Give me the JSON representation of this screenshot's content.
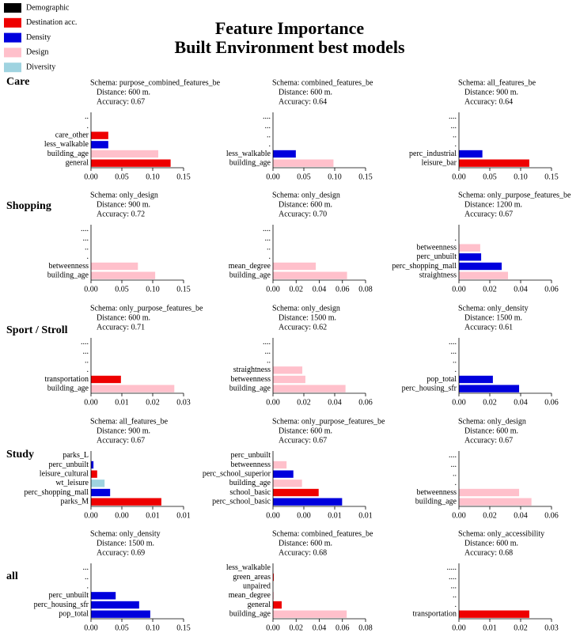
{
  "title": "Feature Importance",
  "subtitle": "Built Environment best models",
  "legend": [
    {
      "name": "Demographic",
      "color": "#000000"
    },
    {
      "name": "Destination acc.",
      "color": "#ee0000"
    },
    {
      "name": "Density",
      "color": "#0000dd"
    },
    {
      "name": "Design",
      "color": "#ffc0cb"
    },
    {
      "name": "Diversity",
      "color": "#9fd3e0"
    }
  ],
  "row_labels": [
    "Care",
    "Shopping",
    "Sport / Stroll",
    "Study",
    "all"
  ],
  "chart_data": [
    {
      "type": "bar",
      "schema": "Schema: purpose_combined_features_be",
      "distance": "Distance: 600 m.",
      "accuracy": "Accuracy: 0.67",
      "categories": [
        "..",
        ".",
        "care_other",
        "less_walkable",
        "building_age",
        "general"
      ],
      "values": [
        null,
        null,
        0.028,
        0.028,
        0.109,
        0.129
      ],
      "colors": [
        null,
        null,
        "#ee0000",
        "#0000dd",
        "#ffc0cb",
        "#ee0000"
      ],
      "xlim": [
        0,
        0.15
      ],
      "xticks": [
        {
          "value": 0,
          "label": "0.00"
        },
        {
          "value": 0.05,
          "label": "0.05"
        },
        {
          "value": 0.1,
          "label": "0.10"
        },
        {
          "value": 0.15,
          "label": "0.15"
        }
      ]
    },
    {
      "type": "bar",
      "schema": "Schema: combined_features_be",
      "distance": "Distance: 600 m.",
      "accuracy": "Accuracy: 0.64",
      "categories": [
        "....",
        "...",
        "..",
        ".",
        "less_walkable",
        "building_age"
      ],
      "values": [
        null,
        null,
        null,
        null,
        0.037,
        0.098
      ],
      "colors": [
        null,
        null,
        null,
        null,
        "#0000dd",
        "#ffc0cb"
      ],
      "xlim": [
        0,
        0.15
      ],
      "xticks": [
        {
          "value": 0,
          "label": "0.00"
        },
        {
          "value": 0.05,
          "label": "0.05"
        },
        {
          "value": 0.1,
          "label": "0.10"
        },
        {
          "value": 0.15,
          "label": "0.15"
        }
      ]
    },
    {
      "type": "bar",
      "schema": "Schema: all_features_be",
      "distance": "Distance: 900 m.",
      "accuracy": "Accuracy: 0.64",
      "categories": [
        "....",
        "...",
        "..",
        ".",
        "perc_industrial",
        "leisure_bar"
      ],
      "values": [
        null,
        null,
        null,
        null,
        0.038,
        0.114
      ],
      "colors": [
        null,
        null,
        null,
        null,
        "#0000dd",
        "#ee0000"
      ],
      "xlim": [
        0,
        0.15
      ],
      "xticks": [
        {
          "value": 0,
          "label": "0.00"
        },
        {
          "value": 0.05,
          "label": "0.05"
        },
        {
          "value": 0.1,
          "label": "0.10"
        },
        {
          "value": 0.15,
          "label": "0.15"
        }
      ]
    },
    {
      "type": "bar",
      "schema": "Schema: only_design",
      "distance": "Distance: 900 m.",
      "accuracy": "Accuracy: 0.72",
      "categories": [
        "....",
        "...",
        "..",
        ".",
        "betweenness",
        "building_age"
      ],
      "values": [
        null,
        null,
        null,
        null,
        0.076,
        0.104
      ],
      "colors": [
        null,
        null,
        null,
        null,
        "#ffc0cb",
        "#ffc0cb"
      ],
      "xlim": [
        0,
        0.15
      ],
      "xticks": [
        {
          "value": 0,
          "label": "0.00"
        },
        {
          "value": 0.05,
          "label": "0.05"
        },
        {
          "value": 0.1,
          "label": "0.10"
        },
        {
          "value": 0.15,
          "label": "0.15"
        }
      ]
    },
    {
      "type": "bar",
      "schema": "Schema: only_design",
      "distance": "Distance: 600 m.",
      "accuracy": "Accuracy: 0.70",
      "categories": [
        "....",
        "...",
        "..",
        ".",
        "mean_degree",
        "building_age"
      ],
      "values": [
        null,
        null,
        null,
        null,
        0.037,
        0.064
      ],
      "colors": [
        null,
        null,
        null,
        null,
        "#ffc0cb",
        "#ffc0cb"
      ],
      "xlim": [
        0,
        0.08
      ],
      "xticks": [
        {
          "value": 0,
          "label": "0.00"
        },
        {
          "value": 0.02,
          "label": "0.02"
        },
        {
          "value": 0.04,
          "label": "0.04"
        },
        {
          "value": 0.06,
          "label": "0.06"
        },
        {
          "value": 0.08,
          "label": "0.08"
        }
      ]
    },
    {
      "type": "bar",
      "schema": "Schema: only_purpose_features_be",
      "distance": "Distance: 1200 m.",
      "accuracy": "Accuracy: 0.67",
      "categories": [
        ".",
        "betweenness",
        "perc_unbuilt",
        "perc_shopping_mall",
        "straightness"
      ],
      "values": [
        null,
        0.0138,
        0.0144,
        0.0277,
        0.0318
      ],
      "colors": [
        null,
        "#ffc0cb",
        "#0000dd",
        "#0000dd",
        "#ffc0cb"
      ],
      "xlim": [
        0,
        0.06
      ],
      "xticks": [
        {
          "value": 0,
          "label": "0.00"
        },
        {
          "value": 0.02,
          "label": "0.02"
        },
        {
          "value": 0.04,
          "label": "0.04"
        },
        {
          "value": 0.06,
          "label": "0.06"
        }
      ]
    },
    {
      "type": "bar",
      "schema": "Schema: only_purpose_features_be",
      "distance": "Distance: 600 m.",
      "accuracy": "Accuracy: 0.71",
      "categories": [
        "....",
        "...",
        "..",
        ".",
        "transportation",
        "building_age"
      ],
      "values": [
        null,
        null,
        null,
        null,
        0.0097,
        0.027
      ],
      "colors": [
        null,
        null,
        null,
        null,
        "#ee0000",
        "#ffc0cb"
      ],
      "xlim": [
        0,
        0.03
      ],
      "xticks": [
        {
          "value": 0,
          "label": "0.00"
        },
        {
          "value": 0.01,
          "label": "0.01"
        },
        {
          "value": 0.02,
          "label": "0.02"
        },
        {
          "value": 0.03,
          "label": "0.03"
        }
      ]
    },
    {
      "type": "bar",
      "schema": "Schema: only_design",
      "distance": "Distance: 1500 m.",
      "accuracy": "Accuracy: 0.62",
      "categories": [
        "....",
        "...",
        "..",
        "straightness",
        "betweenness",
        "building_age"
      ],
      "values": [
        null,
        null,
        null,
        0.019,
        0.021,
        0.047
      ],
      "colors": [
        null,
        null,
        null,
        "#ffc0cb",
        "#ffc0cb",
        "#ffc0cb"
      ],
      "xlim": [
        0,
        0.06
      ],
      "xticks": [
        {
          "value": 0,
          "label": "0.00"
        },
        {
          "value": 0.02,
          "label": "0.02"
        },
        {
          "value": 0.04,
          "label": "0.04"
        },
        {
          "value": 0.06,
          "label": "0.06"
        }
      ]
    },
    {
      "type": "bar",
      "schema": "Schema: only_density",
      "distance": "Distance: 1500 m.",
      "accuracy": "Accuracy: 0.61",
      "categories": [
        "....",
        "...",
        "..",
        ".",
        "pop_total",
        "perc_housing_sfr"
      ],
      "values": [
        null,
        null,
        null,
        null,
        0.022,
        0.039
      ],
      "colors": [
        null,
        null,
        null,
        null,
        "#0000dd",
        "#0000dd"
      ],
      "xlim": [
        0,
        0.06
      ],
      "xticks": [
        {
          "value": 0,
          "label": "0.00"
        },
        {
          "value": 0.02,
          "label": "0.02"
        },
        {
          "value": 0.04,
          "label": "0.04"
        },
        {
          "value": 0.06,
          "label": "0.06"
        }
      ]
    },
    {
      "type": "bar",
      "schema": "Schema: all_features_be",
      "distance": "Distance: 900 m.",
      "accuracy": "Accuracy: 0.67",
      "categories": [
        "parks_L",
        "perc_unbuilt",
        "leisure_cultural",
        "wt_leisure",
        "perc_shopping_mall",
        "parks_M"
      ],
      "values": [
        0,
        0.0004,
        0.001,
        0.0022,
        0.0031,
        0.0114
      ],
      "colors": [
        "#ee0000",
        "#0000dd",
        "#ee0000",
        "#9fd3e0",
        "#0000dd",
        "#ee0000"
      ],
      "xlim": [
        0,
        0.015
      ],
      "xticks": [
        {
          "value": 0,
          "label": "0.00"
        },
        {
          "value": 0.005,
          "label": "0.00"
        },
        {
          "value": 0.01,
          "label": "0.01"
        },
        {
          "value": 0.015,
          "label": "0.01"
        }
      ]
    },
    {
      "type": "bar",
      "schema": "Schema: only_purpose_features_be",
      "distance": "Distance: 600 m.",
      "accuracy": "Accuracy: 0.67",
      "categories": [
        "perc_unbuilt",
        "betweenness",
        "perc_school_superior",
        "building_age",
        "school_basic",
        "perc_school_basic"
      ],
      "values": [
        0,
        0.0022,
        0.0033,
        0.0047,
        0.0074,
        0.0112
      ],
      "colors": [
        "#0000dd",
        "#ffc0cb",
        "#0000dd",
        "#ffc0cb",
        "#ee0000",
        "#0000dd"
      ],
      "xlim": [
        0,
        0.015
      ],
      "xticks": [
        {
          "value": 0,
          "label": "0.00"
        },
        {
          "value": 0.005,
          "label": "0.00"
        },
        {
          "value": 0.01,
          "label": "0.01"
        },
        {
          "value": 0.015,
          "label": "0.01"
        }
      ]
    },
    {
      "type": "bar",
      "schema": "Schema: only_design",
      "distance": "Distance: 600 m.",
      "accuracy": "Accuracy: 0.67",
      "categories": [
        "....",
        "...",
        "..",
        ".",
        "betweenness",
        "building_age"
      ],
      "values": [
        null,
        null,
        null,
        null,
        0.039,
        0.047
      ],
      "colors": [
        null,
        null,
        null,
        null,
        "#ffc0cb",
        "#ffc0cb"
      ],
      "xlim": [
        0,
        0.06
      ],
      "xticks": [
        {
          "value": 0,
          "label": "0.00"
        },
        {
          "value": 0.02,
          "label": "0.02"
        },
        {
          "value": 0.04,
          "label": "0.04"
        },
        {
          "value": 0.06,
          "label": "0.06"
        }
      ]
    },
    {
      "type": "bar",
      "schema": "Schema: only_density",
      "distance": "Distance: 1500 m.",
      "accuracy": "Accuracy: 0.69",
      "categories": [
        "...",
        "..",
        ".",
        "perc_unbuilt",
        "perc_housing_sfr",
        "pop_total"
      ],
      "values": [
        null,
        null,
        null,
        0.04,
        0.078,
        0.096
      ],
      "colors": [
        null,
        null,
        null,
        "#0000dd",
        "#0000dd",
        "#0000dd"
      ],
      "xlim": [
        0,
        0.15
      ],
      "xticks": [
        {
          "value": 0,
          "label": "0.00"
        },
        {
          "value": 0.05,
          "label": "0.05"
        },
        {
          "value": 0.1,
          "label": "0.10"
        },
        {
          "value": 0.15,
          "label": "0.15"
        }
      ]
    },
    {
      "type": "bar",
      "schema": "Schema: combined_features_be",
      "distance": "Distance: 600 m.",
      "accuracy": "Accuracy: 0.68",
      "categories": [
        "less_walkable",
        "green_areas",
        "unpaired",
        "mean_degree",
        "general",
        "building_age"
      ],
      "values": [
        0,
        0.0007,
        0,
        0.0007,
        0.0075,
        0.0637
      ],
      "colors": [
        "#0000dd",
        "#ee0000",
        "#ffc0cb",
        "#ffc0cb",
        "#ee0000",
        "#ffc0cb"
      ],
      "xlim": [
        0,
        0.08
      ],
      "xticks": [
        {
          "value": 0,
          "label": "0.00"
        },
        {
          "value": 0.02,
          "label": "0.02"
        },
        {
          "value": 0.04,
          "label": "0.04"
        },
        {
          "value": 0.06,
          "label": "0.06"
        },
        {
          "value": 0.08,
          "label": "0.08"
        }
      ]
    },
    {
      "type": "bar",
      "schema": "Schema: only_accessibility",
      "distance": "Distance: 600 m.",
      "accuracy": "Accuracy: 0.68",
      "categories": [
        ".....",
        "....",
        "...",
        "..",
        ".",
        "transportation"
      ],
      "values": [
        null,
        null,
        null,
        null,
        null,
        0.0228
      ],
      "colors": [
        null,
        null,
        null,
        null,
        null,
        "#ee0000"
      ],
      "xlim": [
        0,
        0.03
      ],
      "xticks": [
        {
          "value": 0,
          "label": "0.00"
        },
        {
          "value": 0.01,
          "label": "0.01"
        },
        {
          "value": 0.02,
          "label": "0.02"
        },
        {
          "value": 0.03,
          "label": "0.03"
        }
      ]
    }
  ]
}
